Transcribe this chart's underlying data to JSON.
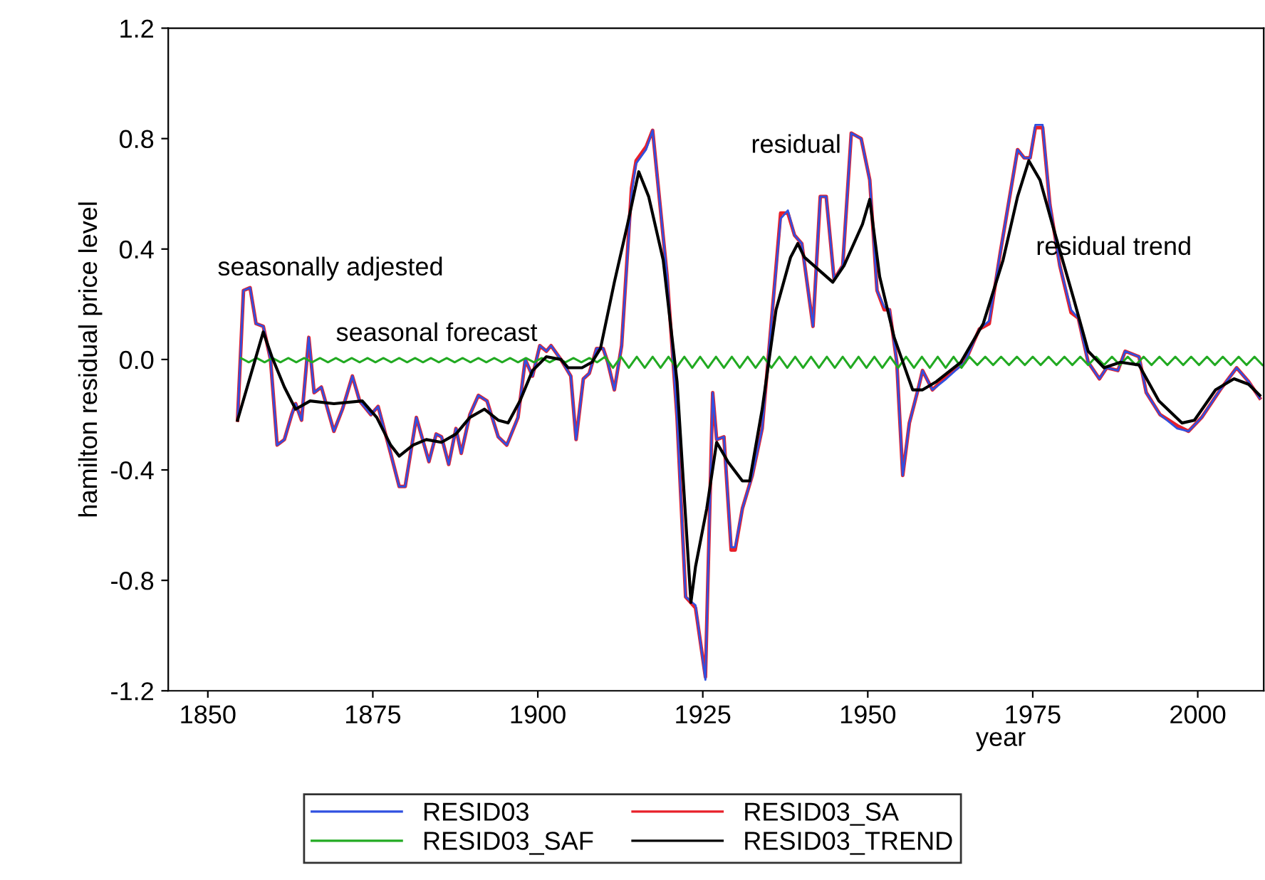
{
  "chart_data": {
    "type": "line",
    "xlabel": "year",
    "ylabel": "hamilton residual price level",
    "xlim": [
      1844,
      2010
    ],
    "xticks": [
      1850,
      1875,
      1900,
      1925,
      1950,
      1975,
      2000
    ],
    "ylim": [
      -1.2,
      1.2
    ],
    "yticks": [
      {
        "value": -1.2,
        "label": "-1.2"
      },
      {
        "value": -0.8,
        "label": "-0.8"
      },
      {
        "value": -0.4,
        "label": "-0.4"
      },
      {
        "value": 0,
        "label": "0.0"
      },
      {
        "value": 0.4,
        "label": "0.4"
      },
      {
        "value": 0.8,
        "label": "0.8"
      },
      {
        "value": 1.2,
        "label": "1.2"
      }
    ],
    "grid": false,
    "legend": "bottom",
    "marker": "none",
    "line_style": "solid",
    "annotations": [
      "seasonally adjested",
      "seasonal forecast",
      "residual",
      "residual trend"
    ],
    "series": [
      {
        "name": "RESID03_SA",
        "color": "#e8202a",
        "x": [
          1854.5,
          1855.4,
          1856.4,
          1857.3,
          1858.4,
          1859.5,
          1860.5,
          1861.6,
          1862.7,
          1863.3,
          1864.2,
          1865.3,
          1866.1,
          1867.2,
          1869.1,
          1870.4,
          1871.9,
          1873.0,
          1874.7,
          1875.8,
          1877.7,
          1879.0,
          1879.9,
          1881.6,
          1883.5,
          1884.6,
          1885.4,
          1886.5,
          1887.6,
          1888.4,
          1889.7,
          1891.0,
          1892.3,
          1894.0,
          1895.3,
          1897.0,
          1898.1,
          1899.2,
          1900.3,
          1901.3,
          1902.0,
          1903.5,
          1905.0,
          1905.8,
          1906.9,
          1907.8,
          1908.9,
          1909.9,
          1910.6,
          1911.6,
          1912.7,
          1914.2,
          1914.9,
          1916.4,
          1917.4,
          1919.6,
          1921.1,
          1922.4,
          1923.9,
          1925.4,
          1926.5,
          1927.1,
          1928.2,
          1929.3,
          1929.9,
          1931.0,
          1932.5,
          1934.0,
          1935.3,
          1936.8,
          1937.9,
          1938.9,
          1940.0,
          1941.7,
          1942.8,
          1943.7,
          1944.9,
          1946.2,
          1947.5,
          1949.0,
          1950.3,
          1951.4,
          1952.5,
          1953.3,
          1954.4,
          1955.3,
          1956.3,
          1957.6,
          1958.3,
          1959.8,
          1961.9,
          1964.7,
          1966.9,
          1968.4,
          1970.1,
          1972.7,
          1973.7,
          1974.6,
          1975.4,
          1976.5,
          1977.6,
          1979.1,
          1980.8,
          1981.9,
          1983.4,
          1985.1,
          1986.2,
          1987.9,
          1989.0,
          1991.1,
          1992.2,
          1994.3,
          1996.9,
          1998.6,
          2000.6,
          2003.4,
          2005.9,
          2007.7,
          2009.4
        ],
        "values": [
          -0.22,
          0.25,
          0.26,
          0.13,
          0.12,
          0.0,
          -0.31,
          -0.29,
          -0.2,
          -0.16,
          -0.22,
          0.08,
          -0.12,
          -0.1,
          -0.26,
          -0.18,
          -0.06,
          -0.15,
          -0.2,
          -0.17,
          -0.34,
          -0.46,
          -0.46,
          -0.21,
          -0.37,
          -0.27,
          -0.28,
          -0.38,
          -0.25,
          -0.34,
          -0.2,
          -0.13,
          -0.15,
          -0.28,
          -0.31,
          -0.21,
          0.0,
          -0.06,
          0.05,
          0.03,
          0.05,
          0.0,
          -0.06,
          -0.29,
          -0.07,
          -0.05,
          0.04,
          0.04,
          -0.01,
          -0.11,
          0.05,
          0.62,
          0.72,
          0.77,
          0.83,
          0.3,
          -0.21,
          -0.86,
          -0.9,
          -1.15,
          -0.12,
          -0.29,
          -0.28,
          -0.69,
          -0.69,
          -0.54,
          -0.42,
          -0.25,
          0.11,
          0.53,
          0.53,
          0.45,
          0.42,
          0.12,
          0.59,
          0.59,
          0.29,
          0.34,
          0.82,
          0.8,
          0.65,
          0.25,
          0.18,
          0.18,
          -0.01,
          -0.42,
          -0.23,
          -0.11,
          -0.04,
          -0.11,
          -0.06,
          -0.01,
          0.11,
          0.13,
          0.39,
          0.76,
          0.73,
          0.73,
          0.84,
          0.84,
          0.56,
          0.34,
          0.17,
          0.15,
          -0.01,
          -0.07,
          -0.03,
          -0.04,
          0.03,
          0.01,
          -0.12,
          -0.2,
          -0.24,
          -0.26,
          -0.21,
          -0.11,
          -0.03,
          -0.08,
          -0.14
        ]
      },
      {
        "name": "RESID03",
        "color": "#3050e0",
        "x": [
          1854.5,
          1855.4,
          1856.4,
          1857.3,
          1858.4,
          1859.5,
          1860.5,
          1861.6,
          1862.7,
          1863.3,
          1864.2,
          1865.3,
          1866.1,
          1867.2,
          1869.1,
          1870.4,
          1871.9,
          1873.0,
          1874.7,
          1875.8,
          1877.7,
          1879.0,
          1879.9,
          1881.6,
          1883.5,
          1884.6,
          1885.4,
          1886.5,
          1887.6,
          1888.4,
          1889.7,
          1891.0,
          1892.3,
          1894.0,
          1895.3,
          1897.0,
          1898.1,
          1899.2,
          1900.3,
          1901.3,
          1902.0,
          1903.5,
          1905.0,
          1905.8,
          1906.9,
          1907.8,
          1908.9,
          1909.9,
          1910.6,
          1911.6,
          1912.7,
          1914.2,
          1914.9,
          1916.4,
          1917.4,
          1919.6,
          1921.1,
          1922.4,
          1923.9,
          1925.4,
          1926.5,
          1927.1,
          1928.2,
          1929.3,
          1929.9,
          1931.0,
          1932.5,
          1934.0,
          1935.3,
          1936.8,
          1937.9,
          1938.9,
          1940.0,
          1941.7,
          1942.8,
          1943.7,
          1944.9,
          1946.2,
          1947.5,
          1949.0,
          1950.3,
          1951.4,
          1952.5,
          1953.3,
          1954.4,
          1955.3,
          1956.3,
          1957.6,
          1958.3,
          1959.8,
          1961.9,
          1964.7,
          1966.9,
          1968.4,
          1970.1,
          1972.7,
          1973.7,
          1974.6,
          1975.4,
          1976.5,
          1977.6,
          1979.1,
          1980.8,
          1981.9,
          1983.4,
          1985.1,
          1986.2,
          1987.9,
          1989.0,
          1991.1,
          1992.2,
          1994.3,
          1996.9,
          1998.6,
          2000.6,
          2003.4,
          2005.9,
          2007.7,
          2009.4
        ],
        "values": [
          -0.22,
          0.25,
          0.26,
          0.13,
          0.12,
          0.0,
          -0.31,
          -0.29,
          -0.2,
          -0.16,
          -0.22,
          0.08,
          -0.12,
          -0.1,
          -0.26,
          -0.18,
          -0.06,
          -0.15,
          -0.2,
          -0.17,
          -0.34,
          -0.46,
          -0.46,
          -0.21,
          -0.37,
          -0.27,
          -0.28,
          -0.38,
          -0.25,
          -0.34,
          -0.2,
          -0.13,
          -0.15,
          -0.28,
          -0.31,
          -0.21,
          0.0,
          -0.06,
          0.05,
          0.03,
          0.05,
          0.0,
          -0.06,
          -0.29,
          -0.07,
          -0.05,
          0.04,
          0.04,
          -0.01,
          -0.11,
          0.05,
          0.6,
          0.71,
          0.76,
          0.83,
          0.3,
          -0.21,
          -0.86,
          -0.89,
          -1.16,
          -0.12,
          -0.29,
          -0.28,
          -0.68,
          -0.68,
          -0.54,
          -0.42,
          -0.25,
          0.11,
          0.51,
          0.54,
          0.45,
          0.42,
          0.12,
          0.59,
          0.59,
          0.29,
          0.34,
          0.82,
          0.8,
          0.65,
          0.25,
          0.19,
          0.18,
          -0.01,
          -0.42,
          -0.23,
          -0.11,
          -0.04,
          -0.11,
          -0.07,
          -0.01,
          0.11,
          0.14,
          0.39,
          0.76,
          0.73,
          0.73,
          0.85,
          0.85,
          0.56,
          0.34,
          0.18,
          0.15,
          -0.01,
          -0.07,
          -0.03,
          -0.04,
          0.03,
          0.01,
          -0.12,
          -0.2,
          -0.25,
          -0.26,
          -0.21,
          -0.11,
          -0.03,
          -0.08,
          -0.14
        ]
      },
      {
        "name": "RESID03_SAF",
        "color": "#22aa22",
        "x": [
          1855,
          1856.2,
          1857.4,
          1858.6,
          1859.8,
          1861,
          1862.2,
          1863.4,
          1864.6,
          1865.8,
          1867,
          1868.2,
          1869.4,
          1870.6,
          1871.8,
          1873,
          1874.2,
          1875.4,
          1876.6,
          1877.8,
          1879,
          1880.2,
          1881.4,
          1882.6,
          1883.8,
          1885,
          1886.2,
          1887.4,
          1888.6,
          1889.8,
          1891,
          1892.2,
          1893.4,
          1894.6,
          1895.8,
          1897,
          1898.2,
          1899.4,
          1900.6,
          1901.8,
          1903,
          1904.2,
          1905.4,
          1906.6,
          1907.8,
          1909,
          1910.2,
          1911.4,
          1912.6,
          1913.8,
          1915,
          1916.2,
          1917.4,
          1918.6,
          1919.8,
          1921,
          1922.2,
          1923.4,
          1924.6,
          1925.8,
          1927,
          1928.2,
          1929.4,
          1930.6,
          1931.8,
          1933,
          1934.2,
          1935.4,
          1936.6,
          1937.8,
          1939,
          1940.2,
          1941.4,
          1942.6,
          1943.8,
          1945,
          1946.2,
          1947.4,
          1948.6,
          1949.8,
          1951,
          1952.2,
          1953.4,
          1954.6,
          1955.8,
          1957,
          1958.2,
          1959.4,
          1960.6,
          1961.8,
          1963,
          1964.2,
          1965.4,
          1966.6,
          1967.8,
          1969,
          1970.2,
          1971.4,
          1972.6,
          1973.8,
          1975,
          1976.2,
          1977.4,
          1978.6,
          1979.8,
          1981,
          1982.2,
          1983.4,
          1984.6,
          1985.8,
          1987,
          1988.2,
          1989.4,
          1990.6,
          1991.8,
          1993,
          1994.2,
          1995.4,
          1996.6,
          1997.8,
          1999,
          2000.2,
          2001.4,
          2002.6,
          2003.8,
          2005,
          2006.2,
          2007.4,
          2008.6,
          2009.8
        ],
        "values": [
          0.005,
          -0.01,
          0.005,
          -0.01,
          0.005,
          -0.01,
          0.005,
          -0.01,
          0.005,
          -0.01,
          0.005,
          -0.01,
          0.005,
          -0.01,
          0.005,
          -0.01,
          0.005,
          -0.01,
          0.005,
          -0.01,
          0.005,
          -0.01,
          0.005,
          -0.01,
          0.005,
          -0.01,
          0.005,
          -0.01,
          0.005,
          -0.01,
          0.005,
          -0.01,
          0.005,
          -0.01,
          0.005,
          -0.01,
          0.005,
          -0.01,
          0.005,
          -0.01,
          0.005,
          -0.01,
          0.005,
          -0.01,
          0.005,
          -0.01,
          0.01,
          -0.03,
          0.01,
          -0.03,
          0.01,
          -0.03,
          0.01,
          -0.03,
          0.01,
          -0.03,
          0.01,
          -0.03,
          0.01,
          -0.03,
          0.01,
          -0.03,
          0.01,
          -0.03,
          0.01,
          -0.03,
          0.01,
          -0.03,
          0.01,
          -0.03,
          0.01,
          -0.03,
          0.01,
          -0.03,
          0.01,
          -0.03,
          0.01,
          -0.03,
          0.01,
          -0.03,
          0.01,
          -0.03,
          0.01,
          -0.03,
          0.01,
          -0.03,
          0.01,
          -0.03,
          0.01,
          -0.03,
          0.01,
          -0.03,
          0.01,
          -0.02,
          0.01,
          -0.02,
          0.01,
          -0.02,
          0.01,
          -0.02,
          0.01,
          -0.02,
          0.01,
          -0.02,
          0.01,
          -0.02,
          0.01,
          -0.02,
          0.01,
          -0.02,
          0.01,
          -0.02,
          0.01,
          -0.02,
          0.01,
          -0.02,
          0.01,
          -0.02,
          0.01,
          -0.02,
          0.01,
          -0.02,
          0.01,
          -0.02,
          0.01,
          -0.02,
          0.01,
          -0.02,
          0.01,
          -0.02
        ]
      },
      {
        "name": "RESID03_TREND",
        "color": "#000000",
        "x": [
          1854.5,
          1858.4,
          1859.7,
          1861.6,
          1863.3,
          1865.5,
          1869.1,
          1873.4,
          1875.6,
          1877.7,
          1879.0,
          1881.1,
          1883.1,
          1885.4,
          1887.6,
          1889.7,
          1891.9,
          1894.0,
          1895.5,
          1897.3,
          1899.2,
          1901.3,
          1903.5,
          1904.6,
          1906.7,
          1908.2,
          1909.5,
          1911.6,
          1913.6,
          1915.3,
          1916.8,
          1919.0,
          1921.1,
          1923.2,
          1923.9,
          1925.6,
          1927.1,
          1928.8,
          1931.0,
          1932.1,
          1934.0,
          1936.1,
          1938.3,
          1939.4,
          1940.4,
          1944.7,
          1946.4,
          1949.2,
          1950.3,
          1951.8,
          1954.0,
          1956.8,
          1958.3,
          1960.4,
          1964.1,
          1967.5,
          1970.5,
          1972.7,
          1974.4,
          1976.1,
          1978.2,
          1981.2,
          1983.4,
          1985.8,
          1988.3,
          1991.1,
          1994.1,
          1997.6,
          1999.5,
          2002.7,
          2005.5,
          2007.7,
          2009.4
        ],
        "values": [
          -0.22,
          0.1,
          0.01,
          -0.1,
          -0.18,
          -0.15,
          -0.16,
          -0.15,
          -0.21,
          -0.31,
          -0.35,
          -0.31,
          -0.29,
          -0.3,
          -0.27,
          -0.21,
          -0.18,
          -0.22,
          -0.23,
          -0.15,
          -0.04,
          0.01,
          0.0,
          -0.03,
          -0.03,
          -0.01,
          0.04,
          0.28,
          0.49,
          0.68,
          0.59,
          0.36,
          -0.08,
          -0.88,
          -0.75,
          -0.54,
          -0.3,
          -0.37,
          -0.44,
          -0.44,
          -0.18,
          0.18,
          0.37,
          0.42,
          0.37,
          0.28,
          0.34,
          0.49,
          0.58,
          0.3,
          0.08,
          -0.11,
          -0.11,
          -0.08,
          -0.01,
          0.13,
          0.36,
          0.59,
          0.72,
          0.65,
          0.47,
          0.22,
          0.03,
          -0.03,
          -0.01,
          -0.02,
          -0.15,
          -0.23,
          -0.22,
          -0.11,
          -0.07,
          -0.09,
          -0.13
        ]
      }
    ]
  }
}
